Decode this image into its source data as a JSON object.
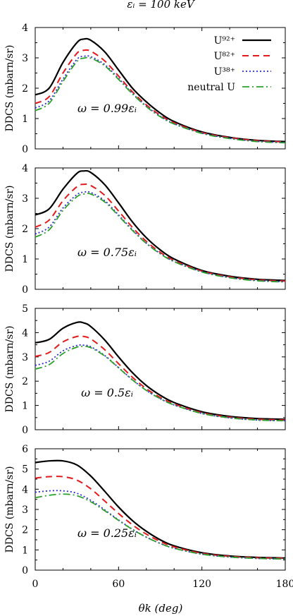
{
  "title": "εᵢ = 100 keV",
  "xlabel": "θk (deg)",
  "legend": [
    "U⁹²⁺",
    "U⁸²⁺",
    "U³⁸⁺",
    "neutral U"
  ],
  "colors": {
    "U92": "#000000",
    "U82": "#e41a1c",
    "U38": "#2b2bd6",
    "neutral": "#2ca02c"
  },
  "chart_data": [
    {
      "type": "line",
      "annotation": "ω = 0.99εᵢ",
      "ylabel": "DDCS (mbarn/sr)",
      "xlim": [
        0,
        180
      ],
      "ylim": [
        0,
        4
      ],
      "yticks": [
        "0",
        "1",
        "2",
        "3",
        "4"
      ],
      "xticks": [
        "0",
        "60",
        "120",
        "180"
      ],
      "x": [
        0,
        10,
        20,
        30,
        35,
        40,
        50,
        60,
        70,
        80,
        90,
        100,
        120,
        140,
        160,
        180
      ],
      "series": [
        {
          "name": "U⁹²⁺",
          "values": [
            1.78,
            2.0,
            2.85,
            3.5,
            3.62,
            3.58,
            3.2,
            2.6,
            2.0,
            1.55,
            1.18,
            0.9,
            0.56,
            0.38,
            0.28,
            0.24
          ]
        },
        {
          "name": "U⁸²⁺",
          "values": [
            1.5,
            1.72,
            2.5,
            3.15,
            3.25,
            3.22,
            2.9,
            2.4,
            1.88,
            1.45,
            1.11,
            0.86,
            0.54,
            0.37,
            0.27,
            0.23
          ]
        },
        {
          "name": "U³⁸⁺",
          "values": [
            1.35,
            1.58,
            2.3,
            2.95,
            3.05,
            3.04,
            2.78,
            2.32,
            1.83,
            1.41,
            1.08,
            0.83,
            0.52,
            0.35,
            0.25,
            0.21
          ]
        },
        {
          "name": "neutral U",
          "values": [
            1.26,
            1.5,
            2.22,
            2.88,
            2.99,
            2.99,
            2.74,
            2.29,
            1.81,
            1.39,
            1.06,
            0.82,
            0.51,
            0.34,
            0.24,
            0.2
          ]
        }
      ]
    },
    {
      "type": "line",
      "annotation": "ω = 0.75εᵢ",
      "ylabel": "DDCS (mbarn/sr)",
      "xlim": [
        0,
        180
      ],
      "ylim": [
        0,
        4
      ],
      "yticks": [
        "0",
        "1",
        "2",
        "3",
        "4"
      ],
      "xticks": [
        "0",
        "60",
        "120",
        "180"
      ],
      "x": [
        0,
        10,
        20,
        30,
        35,
        40,
        50,
        60,
        70,
        80,
        90,
        100,
        120,
        140,
        160,
        180
      ],
      "series": [
        {
          "name": "U⁹²⁺",
          "values": [
            2.45,
            2.65,
            3.3,
            3.82,
            3.9,
            3.85,
            3.45,
            2.85,
            2.22,
            1.7,
            1.3,
            1.0,
            0.62,
            0.43,
            0.33,
            0.29
          ]
        },
        {
          "name": "U⁸²⁺",
          "values": [
            2.05,
            2.28,
            2.92,
            3.38,
            3.46,
            3.42,
            3.1,
            2.58,
            2.04,
            1.58,
            1.22,
            0.95,
            0.6,
            0.41,
            0.31,
            0.27
          ]
        },
        {
          "name": "U³⁸⁺",
          "values": [
            1.82,
            2.05,
            2.68,
            3.12,
            3.2,
            3.19,
            2.92,
            2.45,
            1.96,
            1.52,
            1.18,
            0.92,
            0.58,
            0.39,
            0.29,
            0.25
          ]
        },
        {
          "name": "neutral U",
          "values": [
            1.72,
            1.96,
            2.6,
            3.05,
            3.14,
            3.14,
            2.88,
            2.42,
            1.94,
            1.51,
            1.17,
            0.91,
            0.57,
            0.38,
            0.28,
            0.24
          ]
        }
      ]
    },
    {
      "type": "line",
      "annotation": "ω = 0.5εᵢ",
      "ylabel": "DDCS (mbarn/sr)",
      "xlim": [
        0,
        180
      ],
      "ylim": [
        0,
        5
      ],
      "yticks": [
        "0",
        "1",
        "2",
        "3",
        "4",
        "5"
      ],
      "xticks": [
        "0",
        "60",
        "120",
        "180"
      ],
      "x": [
        0,
        10,
        20,
        30,
        35,
        40,
        50,
        60,
        70,
        80,
        90,
        100,
        120,
        140,
        160,
        180
      ],
      "series": [
        {
          "name": "U⁹²⁺",
          "values": [
            3.58,
            3.72,
            4.18,
            4.42,
            4.4,
            4.25,
            3.7,
            3.0,
            2.35,
            1.82,
            1.42,
            1.12,
            0.74,
            0.55,
            0.46,
            0.43
          ]
        },
        {
          "name": "U⁸²⁺",
          "values": [
            3.02,
            3.18,
            3.62,
            3.84,
            3.84,
            3.74,
            3.3,
            2.72,
            2.16,
            1.69,
            1.33,
            1.06,
            0.7,
            0.52,
            0.43,
            0.4
          ]
        },
        {
          "name": "U³⁸⁺",
          "values": [
            2.65,
            2.82,
            3.25,
            3.47,
            3.48,
            3.42,
            3.06,
            2.56,
            2.06,
            1.62,
            1.28,
            1.02,
            0.67,
            0.49,
            0.4,
            0.37
          ]
        },
        {
          "name": "neutral U",
          "values": [
            2.5,
            2.68,
            3.14,
            3.4,
            3.43,
            3.38,
            3.04,
            2.55,
            2.05,
            1.62,
            1.28,
            1.02,
            0.67,
            0.49,
            0.4,
            0.37
          ]
        }
      ]
    },
    {
      "type": "line",
      "annotation": "ω = 0.25εᵢ",
      "ylabel": "DDCS (mbarn/sr)",
      "xlim": [
        0,
        180
      ],
      "ylim": [
        0,
        6
      ],
      "yticks": [
        "0",
        "1",
        "2",
        "3",
        "4",
        "5",
        "6"
      ],
      "xticks": [
        "0",
        "60",
        "120",
        "180"
      ],
      "x": [
        0,
        10,
        20,
        30,
        40,
        50,
        60,
        70,
        80,
        90,
        100,
        120,
        140,
        160,
        180
      ],
      "series": [
        {
          "name": "U⁹²⁺",
          "values": [
            5.32,
            5.4,
            5.4,
            5.2,
            4.65,
            3.9,
            3.12,
            2.45,
            1.92,
            1.5,
            1.2,
            0.86,
            0.7,
            0.63,
            0.6
          ]
        },
        {
          "name": "U⁸²⁺",
          "values": [
            4.55,
            4.62,
            4.62,
            4.45,
            4.02,
            3.42,
            2.8,
            2.24,
            1.78,
            1.42,
            1.15,
            0.83,
            0.68,
            0.61,
            0.58
          ]
        },
        {
          "name": "U³⁸⁺",
          "values": [
            3.85,
            3.92,
            3.92,
            3.8,
            3.45,
            2.98,
            2.48,
            2.02,
            1.63,
            1.32,
            1.08,
            0.79,
            0.65,
            0.58,
            0.55
          ]
        },
        {
          "name": "neutral U",
          "values": [
            3.58,
            3.7,
            3.76,
            3.68,
            3.38,
            2.94,
            2.46,
            2.01,
            1.63,
            1.32,
            1.08,
            0.79,
            0.65,
            0.58,
            0.55
          ]
        }
      ]
    }
  ]
}
